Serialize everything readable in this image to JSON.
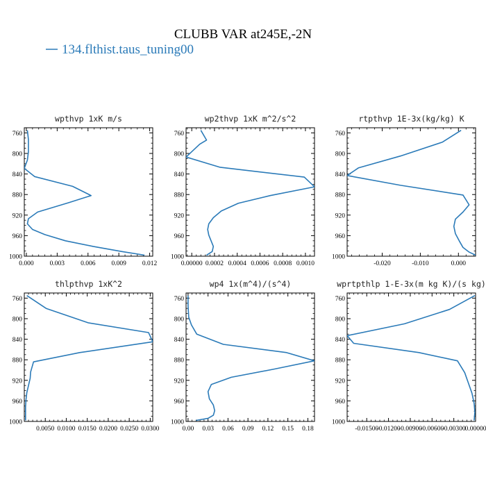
{
  "figure": {
    "title": "CLUBB VAR at245E,-2N",
    "legend": "134.flthist.taus_tuning00",
    "line_color": "#2a7ab8"
  },
  "chart_data": [
    {
      "type": "line",
      "title": "wpthvp   1xK m/s",
      "xlim": [
        -0.0002,
        0.0123
      ],
      "xticks": [
        0.0,
        0.003,
        0.006,
        0.009,
        0.012
      ],
      "xtick_labels": [
        "0.000",
        "0.003",
        "0.006",
        "0.009",
        "0.012"
      ],
      "ylim": [
        1000,
        750
      ],
      "yticks": [
        760,
        800,
        840,
        880,
        920,
        960,
        1000
      ],
      "series": [
        {
          "x": [
            0.0001,
            0.0002,
            0.0002,
            0.0001,
            -0.0002,
            0.0008,
            0.0045,
            0.0063,
            0.0041,
            0.0011,
            0.0002,
            0.0001,
            0.0006,
            0.0018,
            0.0038,
            0.0065,
            0.0093,
            0.0115
          ],
          "y": [
            755,
            773,
            797,
            813,
            829,
            845,
            864,
            882,
            896,
            914,
            927,
            937,
            948,
            958,
            970,
            981,
            991,
            998
          ]
        }
      ]
    },
    {
      "type": "line",
      "title": "wp2thvp   1xK m^2/s^2",
      "xlim": [
        -5e-05,
        0.00108
      ],
      "xticks": [
        0.0,
        0.0002,
        0.0004,
        0.0006,
        0.0008,
        0.001
      ],
      "xtick_labels": [
        "0.00000",
        "0.0002",
        "0.0004",
        "0.0006",
        "0.0008",
        "0.0010"
      ],
      "ylim": [
        1000,
        750
      ],
      "yticks": [
        760,
        800,
        840,
        880,
        920,
        960,
        1000
      ],
      "series": [
        {
          "x": [
            8e-05,
            0.00013,
            7e-05,
            -5e-05,
            0.00025,
            0.00099,
            0.00108,
            0.00069,
            0.00041,
            0.00026,
            0.00019,
            0.00015,
            0.00014,
            0.00015,
            0.00017,
            0.00019,
            0.00018,
            0.00013
          ],
          "y": [
            755,
            774,
            782,
            807,
            827,
            846,
            865,
            882,
            897,
            912,
            925,
            937,
            948,
            959,
            970,
            981,
            991,
            998
          ]
        }
      ]
    },
    {
      "type": "line",
      "title": "rtpthvp   1E-3x(kg/kg) K",
      "xlim": [
        -0.0292,
        0.0045
      ],
      "xticks": [
        -0.02,
        -0.01,
        0.0
      ],
      "xtick_labels": [
        "-0.020",
        "-0.010",
        "0.000"
      ],
      "ylim": [
        1000,
        750
      ],
      "yticks": [
        760,
        800,
        840,
        880,
        920,
        960,
        1000
      ],
      "series": [
        {
          "x": [
            0.0007,
            -0.0042,
            -0.0152,
            -0.0262,
            -0.0292,
            -0.0152,
            0.0012,
            0.0028,
            0.0012,
            -0.0008,
            -0.0012,
            -0.0008,
            0.0002,
            0.0012,
            0.0028,
            0.0045
          ],
          "y": [
            755,
            778,
            805,
            828,
            843,
            862,
            881,
            900,
            914,
            928,
            942,
            956,
            970,
            983,
            992,
            998
          ]
        }
      ]
    },
    {
      "type": "line",
      "title": "thlpthvp   1xK^2",
      "xlim": [
        0.0,
        0.0306
      ],
      "xticks": [
        0.005,
        0.01,
        0.015,
        0.02,
        0.025,
        0.03
      ],
      "xtick_labels": [
        "0.0050",
        "0.0100",
        "0.0150",
        "0.0200",
        "0.0250",
        "0.0300"
      ],
      "ylim": [
        1000,
        750
      ],
      "yticks": [
        760,
        800,
        840,
        880,
        920,
        960,
        1000
      ],
      "series": [
        {
          "x": [
            0.0006,
            0.0052,
            0.0152,
            0.0296,
            0.0306,
            0.0132,
            0.0022,
            0.0015,
            0.0014,
            0.001,
            0.0006,
            0.0004,
            0.0003,
            0.0003,
            0.0003
          ],
          "y": [
            755,
            780,
            808,
            827,
            845,
            866,
            884,
            904,
            916,
            930,
            944,
            958,
            972,
            986,
            998
          ]
        }
      ]
    },
    {
      "type": "line",
      "title": "wp4   1x(m^4)/(s^4)",
      "xlim": [
        -0.003,
        0.19
      ],
      "xticks": [
        0.0,
        0.03,
        0.06,
        0.09,
        0.12,
        0.15,
        0.18
      ],
      "xtick_labels": [
        "0.00",
        "0.03",
        "0.06",
        "0.09",
        "0.12",
        "0.15",
        "0.18"
      ],
      "ylim": [
        1000,
        750
      ],
      "yticks": [
        760,
        800,
        840,
        880,
        920,
        960,
        1000
      ],
      "series": [
        {
          "x": [
            0.0,
            0.0,
            0.001,
            0.005,
            0.013,
            0.053,
            0.148,
            0.19,
            0.13,
            0.065,
            0.035,
            0.03,
            0.032,
            0.038,
            0.04,
            0.038,
            0.03,
            0.012
          ],
          "y": [
            755,
            775,
            797,
            812,
            830,
            850,
            866,
            882,
            898,
            914,
            928,
            942,
            956,
            968,
            979,
            988,
            994,
            998
          ]
        }
      ]
    },
    {
      "type": "line",
      "title": "wprtpthlp   1-E-3x(m kg K)/(s kg)",
      "xlim": [
        -0.0177,
        0.0
      ],
      "xticks": [
        -0.015,
        -0.012,
        -0.009,
        -0.006,
        -0.003,
        0.0
      ],
      "xtick_labels": [
        "-0.01500",
        "-0.01200",
        "-0.00900",
        "-0.00600",
        "-0.00300",
        "0.00000"
      ],
      "ylim": [
        1000,
        750
      ],
      "yticks": [
        760,
        800,
        840,
        880,
        920,
        960,
        1000
      ],
      "series": [
        {
          "x": [
            -0.0001,
            -0.0036,
            -0.0098,
            -0.0177,
            -0.0168,
            -0.0078,
            -0.0025,
            -0.0015,
            -0.001,
            -0.0005,
            -0.0002,
            -0.0001,
            -0.0002
          ],
          "y": [
            755,
            782,
            810,
            833,
            848,
            866,
            882,
            905,
            925,
            945,
            965,
            982,
            998
          ]
        }
      ]
    }
  ]
}
